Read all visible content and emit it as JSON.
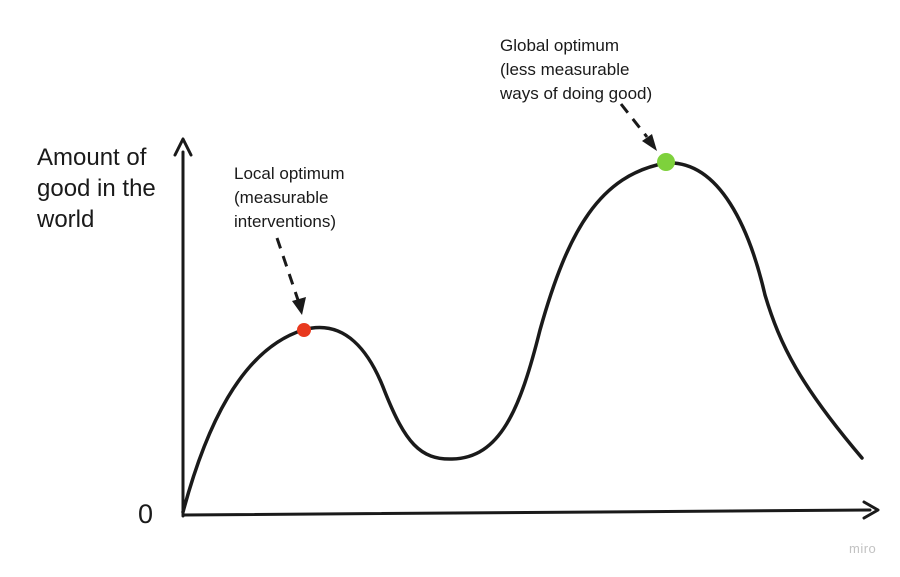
{
  "diagram": {
    "y_axis_label": "Amount of\ngood in the\nworld",
    "origin_label": "0",
    "local_optimum": {
      "label": "Local optimum\n(measurable\ninterventions)",
      "color": "#e8391e"
    },
    "global_optimum": {
      "label": "Global optimum\n(less measurable\nways of doing good)",
      "color": "#7ed13c"
    },
    "curve_color": "#1a1a1a",
    "watermark": "miro"
  }
}
